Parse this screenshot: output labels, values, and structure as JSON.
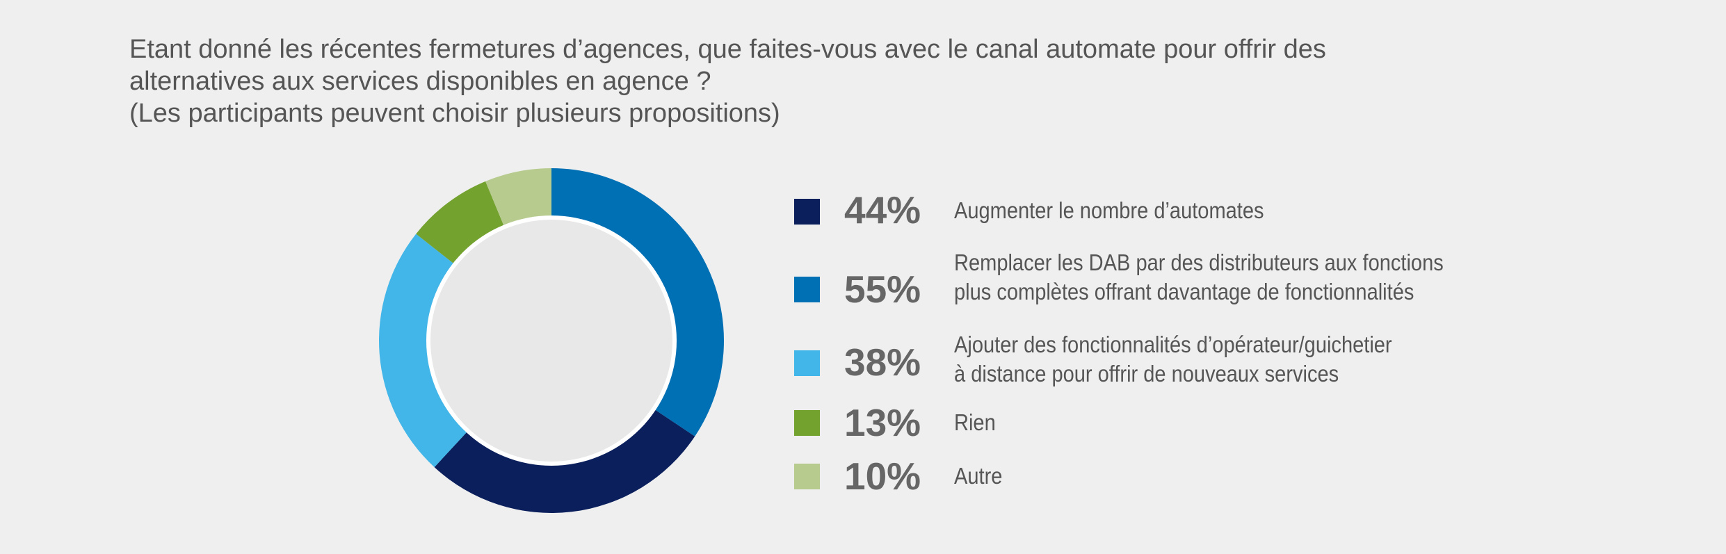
{
  "chart_data": {
    "type": "pie",
    "title_lines": [
      "Etant donné les récentes fermetures d’agences, que faites-vous avec le canal automate pour offrir des",
      "alternatives aux services disponibles en agence ?",
      "(Les participants peuvent choisir plusieurs propositions)"
    ],
    "donut": true,
    "center_color": "#e8e8e8",
    "ring_colors": [
      "#0070b5",
      "#0a1f5c",
      "#42b6e8",
      "#74a22f",
      "#b7cb8f"
    ],
    "segments": [
      {
        "name": "Remplacer les DAB par des distributeurs aux fonctions plus complètes offrant davantage de fonctionnalités",
        "value": 55,
        "color": "#0070b5"
      },
      {
        "name": "Augmenter le nombre d’automates",
        "value": 44,
        "color": "#0a1f5c"
      },
      {
        "name": "Ajouter des fonctionnalités d’opérateur/guichetier à distance pour offrir de nouveaux services",
        "value": 38,
        "color": "#42b6e8"
      },
      {
        "name": "Rien",
        "value": 13,
        "color": "#74a22f"
      },
      {
        "name": "Autre",
        "value": 10,
        "color": "#b7cb8f"
      }
    ],
    "legend": {
      "placement": "right",
      "items": [
        {
          "percent": "44%",
          "value": 44,
          "lines": [
            "Augmenter le nombre d’automates"
          ],
          "color": "#0a1f5c"
        },
        {
          "percent": "55%",
          "value": 55,
          "lines": [
            "Remplacer les DAB par des distributeurs aux fonctions",
            "plus complètes offrant davantage de fonctionnalités"
          ],
          "color": "#0070b5"
        },
        {
          "percent": "38%",
          "value": 38,
          "lines": [
            "Ajouter des fonctionnalités d’opérateur/guichetier",
            "à distance pour offrir de nouveaux services"
          ],
          "color": "#42b6e8"
        },
        {
          "percent": "13%",
          "value": 13,
          "lines": [
            "Rien"
          ],
          "color": "#74a22f"
        },
        {
          "percent": "10%",
          "value": 10,
          "lines": [
            "Autre"
          ],
          "color": "#b7cb8f"
        }
      ]
    }
  }
}
